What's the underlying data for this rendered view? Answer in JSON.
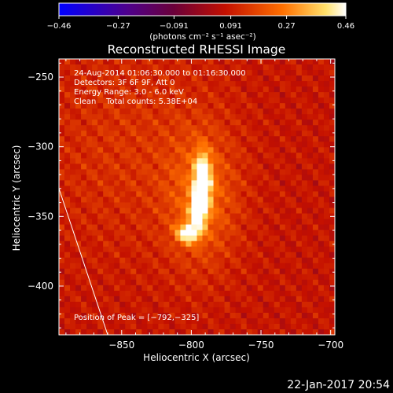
{
  "chart_data": {
    "type": "heatmap",
    "title": "Reconstructed RHESSI Image",
    "xlabel": "Heliocentric X (arcsec)",
    "ylabel": "Heliocentric Y (arcsec)",
    "xlim": [
      -895,
      -697
    ],
    "ylim": [
      -435,
      -237
    ],
    "xticks": [
      -850,
      -800,
      -750,
      -700
    ],
    "xtick_labels": [
      "−850",
      "−800",
      "−750",
      "−700"
    ],
    "yticks": [
      -250,
      -300,
      -350,
      -400
    ],
    "ytick_labels": [
      "−250",
      "−300",
      "−350",
      "−400"
    ],
    "colorbar": {
      "min": -0.46,
      "max": 0.46,
      "ticks": [
        -0.46,
        -0.27,
        -0.091,
        0.091,
        0.27,
        0.46
      ],
      "tick_labels": [
        "−0.46",
        "−0.27",
        "−0.091",
        "0.091",
        "0.27",
        "0.46"
      ],
      "units": "(photons cm⁻² s⁻¹ asec⁻²)"
    },
    "annotations": [
      "24-Aug-2014 01:06:30.000 to 01:16:30.000",
      "Detectors: 3F 6F 9F, Att 0",
      "Energy Range: 3.0 - 6.0 keV",
      "Clean    Total counts: 5.38E+04"
    ],
    "peak_label": "Position of Peak = [−792,−325]",
    "peak": [
      -792,
      -325
    ],
    "sources": [
      {
        "x": -792,
        "y": -325,
        "sx": 4,
        "sy": 13,
        "amp": 0.46
      },
      {
        "x": -795,
        "y": -345,
        "sx": 4,
        "sy": 8,
        "amp": 0.37
      },
      {
        "x": -802,
        "y": -362,
        "sx": 6,
        "sy": 5,
        "amp": 0.33
      },
      {
        "x": -792,
        "y": -337,
        "sx": 18,
        "sy": 35,
        "amp": 0.14
      },
      {
        "x": -845,
        "y": -300,
        "sx": 45,
        "sy": 55,
        "amp": 0.06
      }
    ],
    "background_level": 0.08,
    "limb": [
      [
        -895,
        -330
      ],
      [
        -860,
        -435
      ]
    ]
  },
  "footer": {
    "timestamp": "22-Jan-2017 20:54"
  }
}
